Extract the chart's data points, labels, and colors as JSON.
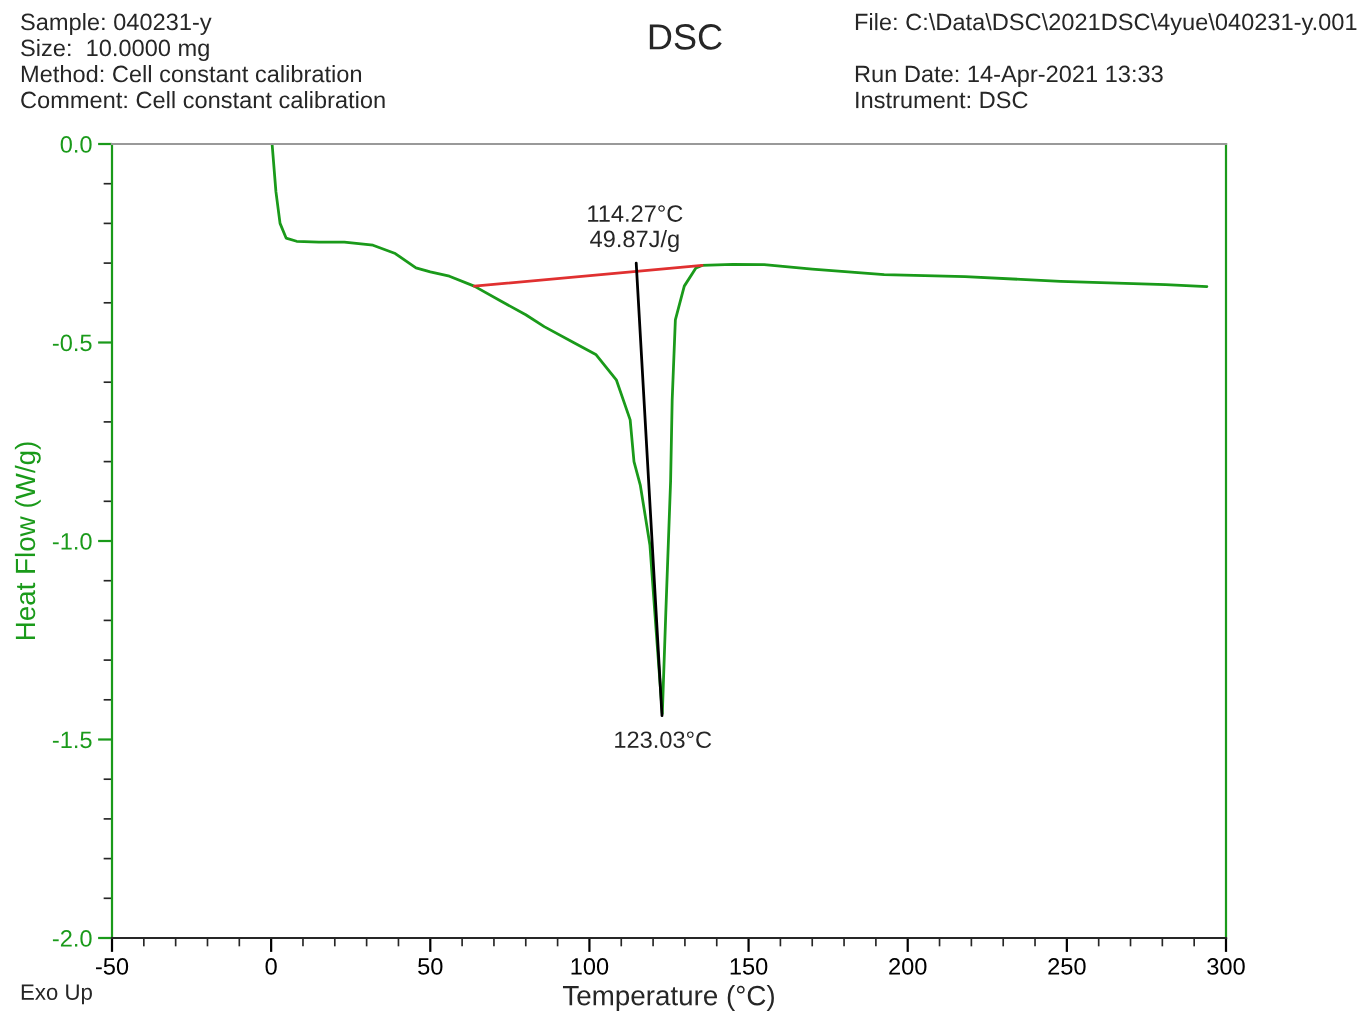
{
  "chart_data": {
    "type": "line",
    "title": "DSC",
    "xlabel": "Temperature (°C)",
    "ylabel": "Heat Flow (W/g)",
    "xlim": [
      -50,
      300
    ],
    "xticks": [
      -50,
      0,
      50,
      100,
      150,
      200,
      250,
      300
    ],
    "ylim": [
      -2.0,
      0.0
    ],
    "yticks": [
      {
        "value": -2.0,
        "label": "-2.0"
      },
      {
        "value": -1.5,
        "label": "-1.5"
      },
      {
        "value": -1.0,
        "label": "-1.0"
      },
      {
        "value": -0.5,
        "label": "-0.5"
      },
      {
        "value": 0.0,
        "label": "0.0"
      }
    ],
    "grid": false,
    "legend": false,
    "series": [
      {
        "color": "#1a9a1a",
        "x": [
          0.3,
          1.5,
          2.8,
          4.7,
          8,
          15,
          23,
          32,
          39,
          45.5,
          50,
          56,
          63.8,
          72,
          80,
          85.8,
          95,
          102,
          108.5,
          112.8,
          114,
          116,
          119,
          121,
          122.9,
          124,
          125.5,
          126,
          127,
          129.8,
          133.5,
          135.4,
          145,
          154.9,
          170,
          192.6,
          218,
          248,
          281,
          294
        ],
        "values": [
          0.0,
          -0.12,
          -0.2,
          -0.237,
          -0.245,
          -0.247,
          -0.247,
          -0.255,
          -0.276,
          -0.312,
          -0.322,
          -0.333,
          -0.358,
          -0.395,
          -0.43,
          -0.46,
          -0.5,
          -0.53,
          -0.595,
          -0.695,
          -0.8,
          -0.86,
          -1.01,
          -1.23,
          -1.435,
          -1.18,
          -0.85,
          -0.645,
          -0.443,
          -0.358,
          -0.312,
          -0.306,
          -0.303,
          -0.304,
          -0.315,
          -0.329,
          -0.334,
          -0.346,
          -0.354,
          -0.359
        ]
      },
      {
        "color": "#e03030",
        "x": [
          63.8,
          135.4
        ],
        "values": [
          -0.358,
          -0.306
        ]
      },
      {
        "color": "#000000",
        "x": [
          114.7,
          122.8
        ],
        "values": [
          -0.3,
          -1.44
        ]
      }
    ],
    "annotations": [
      "Sample: 040231-y",
      "Size:  10.0000 mg",
      "Method: Cell constant calibration",
      "Comment: Cell constant calibration",
      "File: C:\\Data\\DSC\\2021DSC\\4yue\\040231-y.001",
      "Run Date: 14-Apr-2021 13:33",
      "Instrument: DSC",
      {
        "text": "114.27°C\n49.87J/g",
        "x": 114.27,
        "y": -0.3
      },
      {
        "text": "123.03°C",
        "x": 123.03,
        "y": -1.45
      },
      "Exo Up"
    ]
  }
}
